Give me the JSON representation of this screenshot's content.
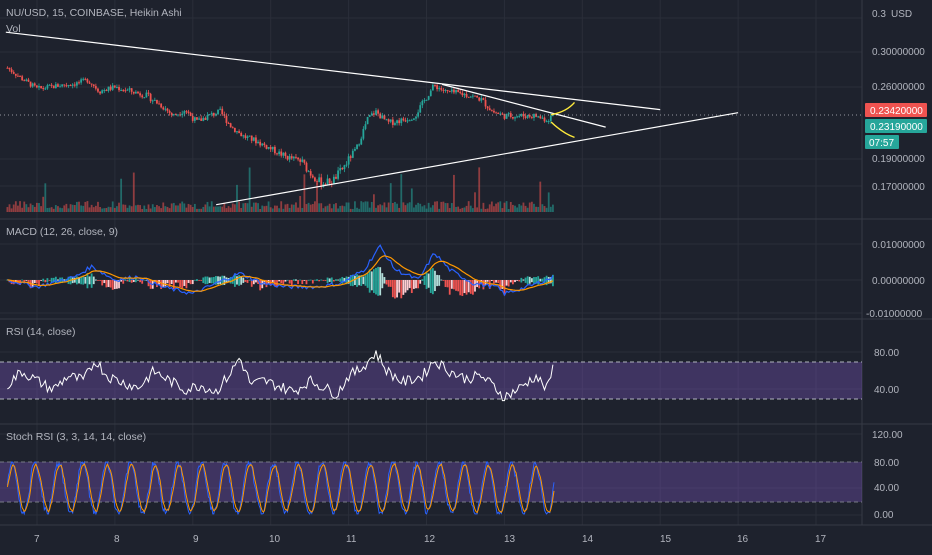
{
  "header": {
    "symbol_line": "NU/USD, 15, COINBASE, Heikin Ashi",
    "vol_label": "Vol"
  },
  "price_axis": {
    "currency": "USD",
    "ticks": [
      "0.30000000",
      "0.26000000",
      "0.19000000",
      "0.17000000"
    ],
    "top_partial": "0.3"
  },
  "price_badges": {
    "last": "0.23420000",
    "last_color": "#ef5350",
    "current": "0.23190000",
    "current_color": "#26a69a",
    "countdown": "07:57"
  },
  "time_axis": {
    "labels": [
      "7",
      "8",
      "9",
      "10",
      "11",
      "12",
      "13",
      "14",
      "15",
      "16",
      "17"
    ]
  },
  "panes": {
    "macd": {
      "title": "MACD (12, 26, close, 9)",
      "ticks": [
        "0.01000000",
        "0.00000000",
        "-0.01000000"
      ]
    },
    "rsi": {
      "title": "RSI (14, close)",
      "ticks": [
        "80.00",
        "40.00"
      ],
      "band": [
        30,
        70
      ]
    },
    "stoch": {
      "title": "Stoch RSI (3, 3, 14, 14, close)",
      "ticks": [
        "120.00",
        "80.00",
        "40.00",
        "0.00"
      ],
      "band": [
        20,
        80
      ]
    }
  },
  "colors": {
    "background": "#1e222d",
    "up": "#26a69a",
    "down": "#ef5350",
    "macd_line": "#2962ff",
    "signal_line": "#ff9800",
    "rsi_line": "#ffffff",
    "band_fill": "#7e57c2",
    "trendline": "#ffffff",
    "projection": "#ffeb3b"
  },
  "chart_data": {
    "type": "candlestick",
    "symbol": "NU/USD",
    "interval": "15",
    "exchange": "COINBASE",
    "style": "Heikin Ashi",
    "x_range_days": [
      6.6,
      17.8
    ],
    "y_range": [
      0.155,
      0.32
    ],
    "grid": true,
    "price_path": [
      [
        6.62,
        0.282
      ],
      [
        6.8,
        0.27
      ],
      [
        7.0,
        0.258
      ],
      [
        7.3,
        0.262
      ],
      [
        7.5,
        0.264
      ],
      [
        7.65,
        0.268
      ],
      [
        7.8,
        0.256
      ],
      [
        8.0,
        0.26
      ],
      [
        8.2,
        0.256
      ],
      [
        8.4,
        0.252
      ],
      [
        8.6,
        0.242
      ],
      [
        8.75,
        0.232
      ],
      [
        8.9,
        0.238
      ],
      [
        9.05,
        0.226
      ],
      [
        9.2,
        0.232
      ],
      [
        9.35,
        0.236
      ],
      [
        9.5,
        0.221
      ],
      [
        9.65,
        0.212
      ],
      [
        9.8,
        0.208
      ],
      [
        10.0,
        0.2
      ],
      [
        10.2,
        0.192
      ],
      [
        10.4,
        0.188
      ],
      [
        10.5,
        0.18
      ],
      [
        10.65,
        0.172
      ],
      [
        10.8,
        0.174
      ],
      [
        10.95,
        0.185
      ],
      [
        11.1,
        0.2
      ],
      [
        11.25,
        0.23
      ],
      [
        11.35,
        0.236
      ],
      [
        11.5,
        0.225
      ],
      [
        11.7,
        0.228
      ],
      [
        11.85,
        0.232
      ],
      [
        12.0,
        0.25
      ],
      [
        12.1,
        0.262
      ],
      [
        12.25,
        0.255
      ],
      [
        12.4,
        0.254
      ],
      [
        12.55,
        0.252
      ],
      [
        12.7,
        0.248
      ],
      [
        12.85,
        0.236
      ],
      [
        13.0,
        0.232
      ],
      [
        13.2,
        0.232
      ],
      [
        13.4,
        0.232
      ],
      [
        13.55,
        0.228
      ],
      [
        13.65,
        0.2342
      ]
    ],
    "last_price": 0.2342,
    "current_price": 0.2319,
    "countdown": "07:57",
    "trendlines": [
      {
        "from": [
          6.6,
          0.318
        ],
        "to": [
          15.0,
          0.238
        ]
      },
      {
        "from": [
          12.2,
          0.263
        ],
        "to": [
          14.3,
          0.221
        ]
      },
      {
        "from": [
          9.3,
          0.156
        ],
        "to": [
          16.0,
          0.235
        ]
      }
    ],
    "projections": [
      {
        "points": [
          [
            13.6,
            0.233
          ],
          [
            13.8,
            0.236
          ],
          [
            13.9,
            0.245
          ]
        ]
      },
      {
        "points": [
          [
            13.6,
            0.226
          ],
          [
            13.75,
            0.215
          ],
          [
            13.9,
            0.211
          ]
        ]
      }
    ],
    "macd_range": [
      -0.012,
      0.012
    ],
    "macd_path": [
      [
        6.62,
        0.0
      ],
      [
        7.0,
        -0.002
      ],
      [
        7.5,
        0.001
      ],
      [
        7.7,
        0.004
      ],
      [
        8.0,
        0.0
      ],
      [
        8.3,
        0.001
      ],
      [
        8.6,
        -0.002
      ],
      [
        9.0,
        -0.004
      ],
      [
        9.3,
        -0.001
      ],
      [
        9.6,
        0.002
      ],
      [
        9.9,
        -0.001
      ],
      [
        10.2,
        -0.002
      ],
      [
        10.6,
        -0.002
      ],
      [
        10.9,
        -0.001
      ],
      [
        11.2,
        0.003
      ],
      [
        11.4,
        0.01
      ],
      [
        11.6,
        0.003
      ],
      [
        11.9,
        0.0
      ],
      [
        12.1,
        0.008
      ],
      [
        12.3,
        0.003
      ],
      [
        12.6,
        -0.001
      ],
      [
        12.9,
        -0.002
      ],
      [
        13.0,
        -0.004
      ],
      [
        13.3,
        -0.002
      ],
      [
        13.65,
        0.001
      ]
    ],
    "rsi_path": [
      [
        6.62,
        45
      ],
      [
        6.8,
        60
      ],
      [
        7.0,
        50
      ],
      [
        7.2,
        40
      ],
      [
        7.4,
        55
      ],
      [
        7.6,
        50
      ],
      [
        7.75,
        72
      ],
      [
        7.9,
        55
      ],
      [
        8.1,
        48
      ],
      [
        8.3,
        42
      ],
      [
        8.5,
        60
      ],
      [
        8.7,
        50
      ],
      [
        8.9,
        40
      ],
      [
        9.1,
        45
      ],
      [
        9.3,
        38
      ],
      [
        9.5,
        60
      ],
      [
        9.6,
        75
      ],
      [
        9.75,
        45
      ],
      [
        9.9,
        50
      ],
      [
        10.1,
        44
      ],
      [
        10.3,
        38
      ],
      [
        10.5,
        50
      ],
      [
        10.7,
        42
      ],
      [
        10.85,
        35
      ],
      [
        11.0,
        55
      ],
      [
        11.15,
        62
      ],
      [
        11.35,
        80
      ],
      [
        11.5,
        60
      ],
      [
        11.7,
        48
      ],
      [
        11.95,
        55
      ],
      [
        12.1,
        72
      ],
      [
        12.3,
        60
      ],
      [
        12.5,
        52
      ],
      [
        12.7,
        55
      ],
      [
        12.85,
        45
      ],
      [
        13.0,
        32
      ],
      [
        13.2,
        42
      ],
      [
        13.4,
        55
      ],
      [
        13.55,
        40
      ],
      [
        13.65,
        72
      ]
    ],
    "stoch_rsi": {
      "k_range": [
        0,
        100
      ],
      "oscillation": "frequent full-range swings between 10 and 100"
    }
  }
}
